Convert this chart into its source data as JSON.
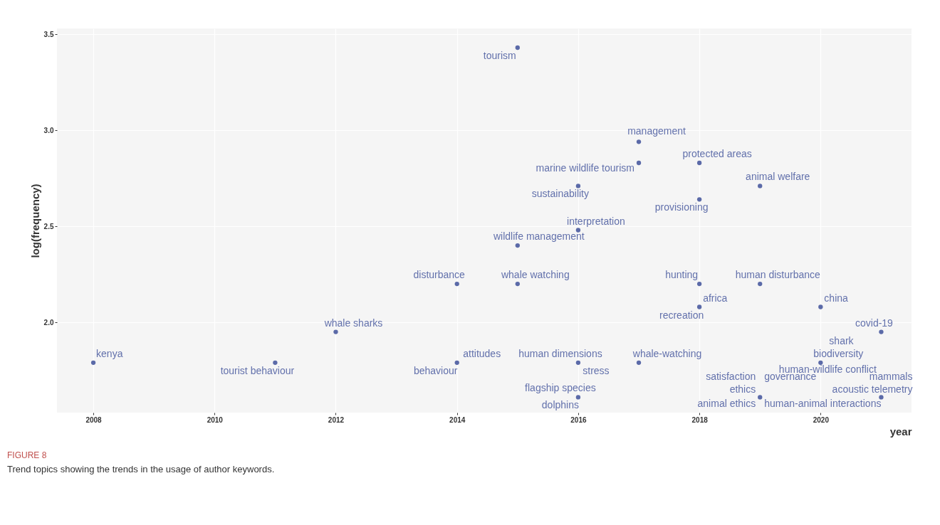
{
  "chart_data": {
    "type": "scatter",
    "xlabel": "year",
    "ylabel": "log(frequency)",
    "xlim": [
      2007.4,
      2021.5
    ],
    "ylim": [
      1.53,
      3.53
    ],
    "xticks": [
      2008,
      2010,
      2012,
      2014,
      2016,
      2018,
      2020
    ],
    "yticks": [
      {
        "value": 2,
        "label": "2.0"
      },
      {
        "value": 2.5,
        "label": "2.5"
      },
      {
        "value": 3,
        "label": "3.0"
      },
      {
        "value": 3.5,
        "label": "3.5"
      }
    ],
    "grid": true,
    "marker": "circle",
    "series": [
      {
        "color": "#5b6aa8",
        "x": [
          2008,
          2011,
          2012,
          2014,
          2014,
          2015,
          2015,
          2015,
          2016,
          2016,
          2016,
          2016,
          2017,
          2017,
          2017,
          2018,
          2018,
          2018,
          2018,
          2019,
          2019,
          2019,
          2020,
          2020,
          2021,
          2021
        ],
        "values": [
          1.79,
          1.79,
          1.95,
          2.2,
          1.79,
          3.43,
          2.4,
          2.2,
          2.71,
          2.48,
          1.79,
          1.61,
          2.94,
          2.83,
          1.79,
          2.83,
          2.64,
          2.2,
          2.08,
          2.71,
          2.2,
          1.61,
          2.08,
          1.79,
          1.95,
          1.61
        ]
      }
    ],
    "annotations": [
      {
        "text": "kenya",
        "x": 2008,
        "y": 1.79
      },
      {
        "text": "tourist behaviour",
        "x": 2011,
        "y": 1.79
      },
      {
        "text": "whale sharks",
        "x": 2012,
        "y": 1.95
      },
      {
        "text": "disturbance",
        "x": 2014,
        "y": 2.2
      },
      {
        "text": "attitudes",
        "x": 2014,
        "y": 1.79
      },
      {
        "text": "behaviour",
        "x": 2014,
        "y": 1.79
      },
      {
        "text": "tourism",
        "x": 2015,
        "y": 3.43
      },
      {
        "text": "wildlife management",
        "x": 2015,
        "y": 2.4
      },
      {
        "text": "whale watching",
        "x": 2015,
        "y": 2.2
      },
      {
        "text": "sustainability",
        "x": 2016,
        "y": 2.71
      },
      {
        "text": "interpretation",
        "x": 2016,
        "y": 2.48
      },
      {
        "text": "human dimensions",
        "x": 2016,
        "y": 1.79
      },
      {
        "text": "stress",
        "x": 2016,
        "y": 1.79
      },
      {
        "text": "flagship species",
        "x": 2016,
        "y": 1.61
      },
      {
        "text": "dolphins",
        "x": 2016,
        "y": 1.61
      },
      {
        "text": "management",
        "x": 2017,
        "y": 2.94
      },
      {
        "text": "marine wildlife tourism",
        "x": 2017,
        "y": 2.83
      },
      {
        "text": "whale-watching",
        "x": 2017,
        "y": 1.79
      },
      {
        "text": "protected areas",
        "x": 2018,
        "y": 2.83
      },
      {
        "text": "provisioning",
        "x": 2018,
        "y": 2.64
      },
      {
        "text": "hunting",
        "x": 2018,
        "y": 2.2
      },
      {
        "text": "africa",
        "x": 2018,
        "y": 2.08
      },
      {
        "text": "recreation",
        "x": 2018,
        "y": 2.08
      },
      {
        "text": "animal welfare",
        "x": 2019,
        "y": 2.71
      },
      {
        "text": "human disturbance",
        "x": 2019,
        "y": 2.2
      },
      {
        "text": "china",
        "x": 2020,
        "y": 2.08
      },
      {
        "text": "biodiversity",
        "x": 2020,
        "y": 1.79
      },
      {
        "text": "human-wildlife conflict",
        "x": 2020,
        "y": 1.79
      },
      {
        "text": "shark",
        "x": 2020,
        "y": 1.79
      },
      {
        "text": "covid-19",
        "x": 2021,
        "y": 1.95
      },
      {
        "text": "governance",
        "x": 2019,
        "y": 1.61
      },
      {
        "text": "satisfaction",
        "x": 2019,
        "y": 1.61
      },
      {
        "text": "ethics",
        "x": 2019,
        "y": 1.61
      },
      {
        "text": "animal ethics",
        "x": 2019,
        "y": 1.61
      },
      {
        "text": "human-animal interactions",
        "x": 2019,
        "y": 1.61
      },
      {
        "text": "acoustic telemetry",
        "x": 2021,
        "y": 1.61
      },
      {
        "text": "mammals",
        "x": 2021,
        "y": 1.61
      },
      "FIGURE 8",
      "Trend topics showing the trends in the usage of author keywords."
    ]
  }
}
